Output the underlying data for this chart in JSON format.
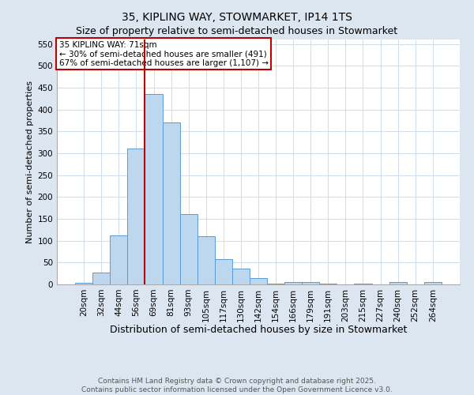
{
  "title": "35, KIPLING WAY, STOWMARKET, IP14 1TS",
  "subtitle": "Size of property relative to semi-detached houses in Stowmarket",
  "xlabel": "Distribution of semi-detached houses by size in Stowmarket",
  "ylabel": "Number of semi-detached properties",
  "bar_labels": [
    "20sqm",
    "32sqm",
    "44sqm",
    "56sqm",
    "69sqm",
    "81sqm",
    "93sqm",
    "105sqm",
    "117sqm",
    "130sqm",
    "142sqm",
    "154sqm",
    "166sqm",
    "179sqm",
    "191sqm",
    "203sqm",
    "215sqm",
    "227sqm",
    "240sqm",
    "252sqm",
    "264sqm"
  ],
  "bar_values": [
    3,
    28,
    112,
    310,
    435,
    370,
    160,
    110,
    57,
    36,
    14,
    1,
    5,
    5,
    1,
    0,
    1,
    0,
    5,
    0,
    5
  ],
  "bar_color": "#bdd7ee",
  "bar_edge_color": "#5b9bd5",
  "background_color": "#dce6f1",
  "plot_background": "#ffffff",
  "vline_bin_index": 4,
  "vline_color": "#c00000",
  "annotation_title": "35 KIPLING WAY: 71sqm",
  "annotation_line1": "← 30% of semi-detached houses are smaller (491)",
  "annotation_line2": "67% of semi-detached houses are larger (1,107) →",
  "annotation_box_color": "#c00000",
  "ylim": [
    0,
    560
  ],
  "yticks": [
    0,
    50,
    100,
    150,
    200,
    250,
    300,
    350,
    400,
    450,
    500,
    550
  ],
  "footer_line1": "Contains HM Land Registry data © Crown copyright and database right 2025.",
  "footer_line2": "Contains public sector information licensed under the Open Government Licence v3.0.",
  "title_fontsize": 10,
  "subtitle_fontsize": 9,
  "xlabel_fontsize": 9,
  "ylabel_fontsize": 8,
  "tick_fontsize": 7.5,
  "footer_fontsize": 6.5,
  "annotation_fontsize": 7.5
}
